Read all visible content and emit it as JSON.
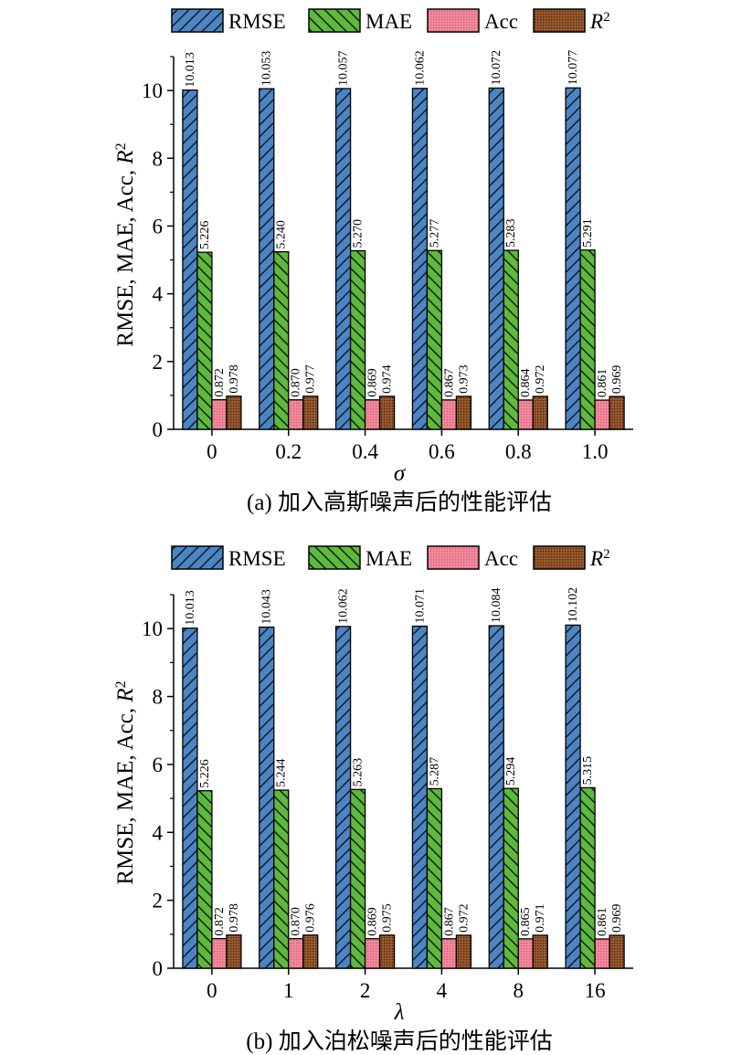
{
  "legend_labels": [
    "RMSE",
    "MAE",
    "Acc",
    "R2"
  ],
  "colors": {
    "RMSE": "#4a86c6",
    "MAE": "#5dba3b",
    "Acc": "#f08a9c",
    "R2": "#9b5a2e",
    "hatch": "#1a1a1a"
  },
  "chart_data": [
    {
      "type": "bar",
      "caption": "(a) 加入高斯噪声后的性能评估",
      "xlabel": "σ",
      "ylabel": "RMSE, MAE, Acc, R2",
      "ylim": [
        0,
        11
      ],
      "yticks": [
        0,
        2,
        4,
        6,
        8,
        10
      ],
      "categories": [
        "0",
        "0.2",
        "0.4",
        "0.6",
        "0.8",
        "1.0"
      ],
      "series": [
        {
          "name": "RMSE",
          "values": [
            10.013,
            10.053,
            10.057,
            10.062,
            10.072,
            10.077
          ],
          "labels": [
            "10.013",
            "10.053",
            "10.057",
            "10.062",
            "10.072",
            "10.077"
          ]
        },
        {
          "name": "MAE",
          "values": [
            5.226,
            5.24,
            5.27,
            5.277,
            5.283,
            5.291
          ],
          "labels": [
            "5.226",
            "5.240",
            "5.270",
            "5.277",
            "5.283",
            "5.291"
          ]
        },
        {
          "name": "Acc",
          "values": [
            0.872,
            0.87,
            0.869,
            0.867,
            0.864,
            0.861
          ],
          "labels": [
            "0.872",
            "0.870",
            "0.869",
            "0.867",
            "0.864",
            "0.861"
          ]
        },
        {
          "name": "R2",
          "values": [
            0.978,
            0.977,
            0.974,
            0.973,
            0.972,
            0.969
          ],
          "labels": [
            "0.978",
            "0.977",
            "0.974",
            "0.973",
            "0.972",
            "0.969"
          ]
        }
      ]
    },
    {
      "type": "bar",
      "caption": "(b) 加入泊松噪声后的性能评估",
      "xlabel": "λ",
      "ylabel": "RMSE, MAE, Acc, R2",
      "ylim": [
        0,
        11
      ],
      "yticks": [
        0,
        2,
        4,
        6,
        8,
        10
      ],
      "categories": [
        "0",
        "1",
        "2",
        "4",
        "8",
        "16"
      ],
      "series": [
        {
          "name": "RMSE",
          "values": [
            10.013,
            10.043,
            10.062,
            10.071,
            10.084,
            10.102
          ],
          "labels": [
            "10.013",
            "10.043",
            "10.062",
            "10.071",
            "10.084",
            "10.102"
          ]
        },
        {
          "name": "MAE",
          "values": [
            5.226,
            5.244,
            5.263,
            5.287,
            5.294,
            5.315
          ],
          "labels": [
            "5.226",
            "5.244",
            "5.263",
            "5.287",
            "5.294",
            "5.315"
          ]
        },
        {
          "name": "Acc",
          "values": [
            0.872,
            0.87,
            0.869,
            0.867,
            0.865,
            0.861
          ],
          "labels": [
            "0.872",
            "0.870",
            "0.869",
            "0.867",
            "0.865",
            "0.861"
          ]
        },
        {
          "name": "R2",
          "values": [
            0.978,
            0.976,
            0.975,
            0.972,
            0.971,
            0.969
          ],
          "labels": [
            "0.978",
            "0.976",
            "0.975",
            "0.972",
            "0.971",
            "0.969"
          ]
        }
      ]
    }
  ]
}
